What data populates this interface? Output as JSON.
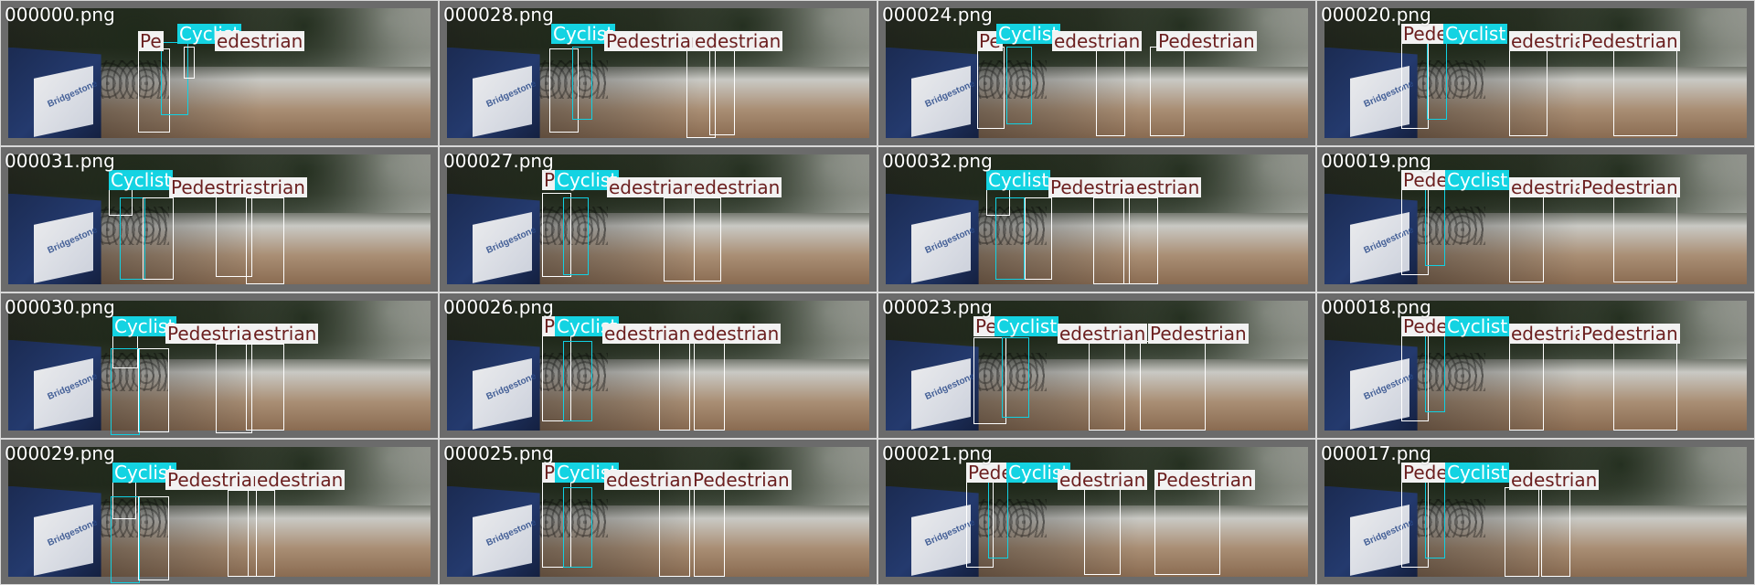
{
  "colors": {
    "pedestrian_label_bg": "#f2f2f2",
    "pedestrian_label_text": "#6b1f1f",
    "cyclist_label_bg": "#14d3e2",
    "cyclist_label_text": "#ffffff",
    "box_white": "#ffffff",
    "box_cyan": "#11d0e2",
    "frame_border": "#6b6b6b"
  },
  "van_text": "Bridgestone",
  "tiles": [
    {
      "name": "000000.png",
      "labels": [
        {
          "text": "Pe",
          "kind": "ped"
        },
        {
          "text": "Cyclist",
          "kind": "cyc"
        },
        {
          "text": "edestrian",
          "kind": "ped"
        }
      ]
    },
    {
      "name": "000028.png",
      "labels": [
        {
          "text": "Cyclist",
          "kind": "cyc"
        },
        {
          "text": "Pedestrian",
          "kind": "ped"
        },
        {
          "text": "edestrian",
          "kind": "ped"
        }
      ]
    },
    {
      "name": "000024.png",
      "labels": [
        {
          "text": "Pe",
          "kind": "ped"
        },
        {
          "text": "Cyclist",
          "kind": "cyc"
        },
        {
          "text": "edestrian",
          "kind": "ped"
        },
        {
          "text": "Pedestrian",
          "kind": "ped"
        }
      ]
    },
    {
      "name": "000020.png",
      "labels": [
        {
          "text": "Pede",
          "kind": "ped"
        },
        {
          "text": "Cyclist",
          "kind": "cyc"
        },
        {
          "text": "edestriani",
          "kind": "ped"
        },
        {
          "text": "Pedestrian",
          "kind": "ped"
        }
      ]
    },
    {
      "name": "000031.png",
      "labels": [
        {
          "text": "Cyclist",
          "kind": "cyc"
        },
        {
          "text": "Pedestrian",
          "kind": "ped"
        },
        {
          "text": "strian",
          "kind": "ped"
        }
      ]
    },
    {
      "name": "000027.png",
      "labels": [
        {
          "text": "P",
          "kind": "ped"
        },
        {
          "text": "Cyclist",
          "kind": "cyc"
        },
        {
          "text": "edestrian",
          "kind": "ped"
        },
        {
          "text": "edestrian",
          "kind": "ped"
        }
      ]
    },
    {
      "name": "000032.png",
      "labels": [
        {
          "text": "Cyclist",
          "kind": "cyc"
        },
        {
          "text": "Pedestrian",
          "kind": "ped"
        },
        {
          "text": "estrian",
          "kind": "ped"
        }
      ]
    },
    {
      "name": "000019.png",
      "labels": [
        {
          "text": "Pedes",
          "kind": "ped"
        },
        {
          "text": "Cyclist",
          "kind": "cyc"
        },
        {
          "text": "edestriana",
          "kind": "ped"
        },
        {
          "text": "Pedestrian",
          "kind": "ped"
        }
      ]
    },
    {
      "name": "000030.png",
      "labels": [
        {
          "text": "Cyclist",
          "kind": "cyc"
        },
        {
          "text": "Pedestrian",
          "kind": "ped"
        },
        {
          "text": "estrian",
          "kind": "ped"
        }
      ]
    },
    {
      "name": "000026.png",
      "labels": [
        {
          "text": "Pe",
          "kind": "ped"
        },
        {
          "text": "Cyclist",
          "kind": "cyc"
        },
        {
          "text": "edestrian",
          "kind": "ped"
        },
        {
          "text": "edestrian",
          "kind": "ped"
        }
      ]
    },
    {
      "name": "000023.png",
      "labels": [
        {
          "text": "Peo",
          "kind": "ped"
        },
        {
          "text": "Cyclist",
          "kind": "cyc"
        },
        {
          "text": "edestrian",
          "kind": "ped"
        },
        {
          "text": "Pedestrian",
          "kind": "ped"
        }
      ]
    },
    {
      "name": "000018.png",
      "labels": [
        {
          "text": "Pedes",
          "kind": "ped"
        },
        {
          "text": "Cyclist",
          "kind": "cyc"
        },
        {
          "text": "edestrian",
          "kind": "ped"
        },
        {
          "text": "Pedestrian",
          "kind": "ped"
        }
      ]
    },
    {
      "name": "000029.png",
      "labels": [
        {
          "text": "Cyclist",
          "kind": "cyc"
        },
        {
          "text": "Pedestrian",
          "kind": "ped"
        },
        {
          "text": "edestrian",
          "kind": "ped"
        }
      ]
    },
    {
      "name": "000025.png",
      "labels": [
        {
          "text": "Pe",
          "kind": "ped"
        },
        {
          "text": "Cyclist",
          "kind": "cyc"
        },
        {
          "text": "edestrian",
          "kind": "ped"
        },
        {
          "text": "Pedestrian",
          "kind": "ped"
        }
      ]
    },
    {
      "name": "000021.png",
      "labels": [
        {
          "text": "Pede",
          "kind": "ped"
        },
        {
          "text": "Cyclist",
          "kind": "cyc"
        },
        {
          "text": "edestrian",
          "kind": "ped"
        },
        {
          "text": "Pedestrian",
          "kind": "ped"
        }
      ]
    },
    {
      "name": "000017.png",
      "labels": [
        {
          "text": "Pede",
          "kind": "ped"
        },
        {
          "text": "Cyclist",
          "kind": "cyc"
        },
        {
          "text": "edestrian",
          "kind": "ped"
        }
      ]
    }
  ]
}
